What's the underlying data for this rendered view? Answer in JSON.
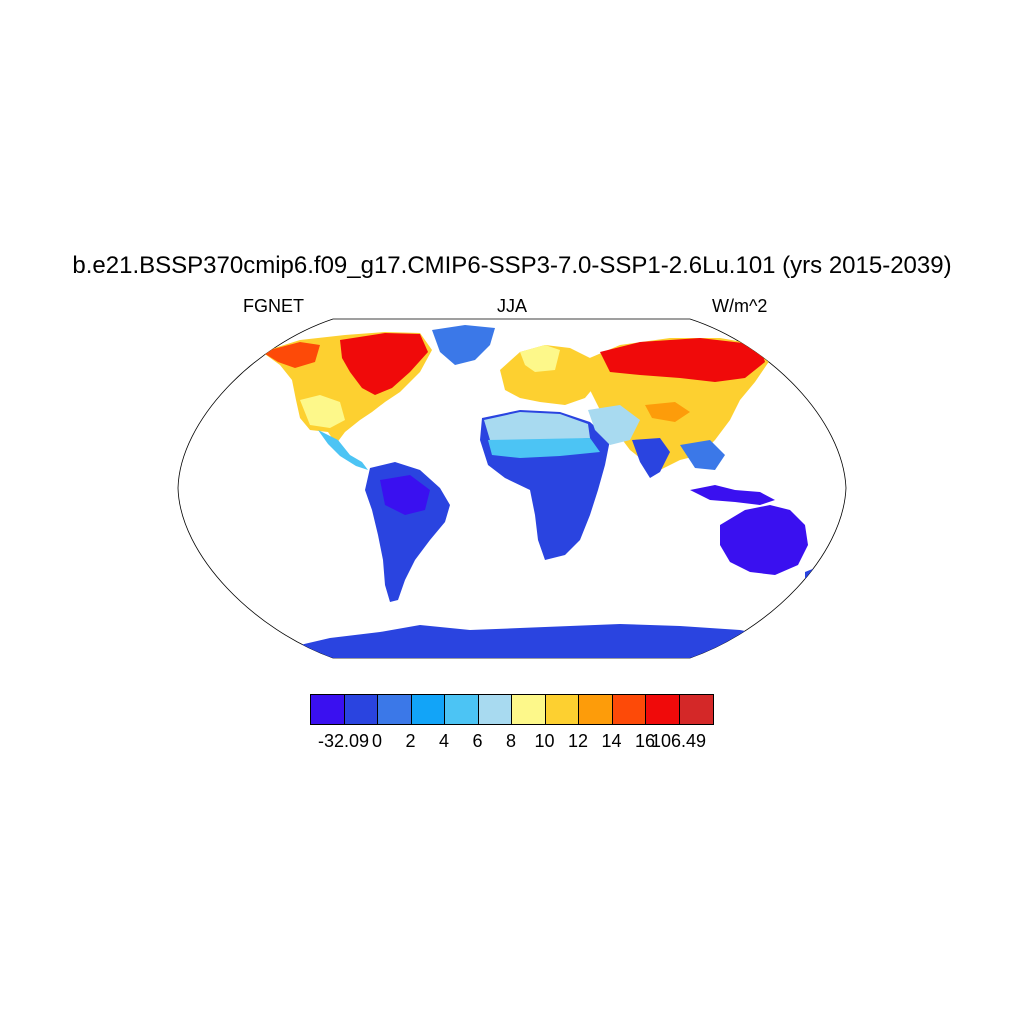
{
  "title": "b.e21.BSSP370cmip6.f09_g17.CMIP6-SSP3-7.0-SSP1-2.6Lu.101 (yrs 2015-2039)",
  "left_label": "FGNET",
  "center_label": "JJA",
  "right_label": "W/m^2",
  "colorbar": {
    "colors": [
      "#3a10f0",
      "#2a44e0",
      "#3b78e8",
      "#12a4f8",
      "#4cc4f4",
      "#a8daf0",
      "#fdf88a",
      "#fdd030",
      "#fd9c0a",
      "#fd4a08",
      "#f00a0a",
      "#d42828"
    ],
    "labels": [
      "-32.09",
      "0",
      "2",
      "4",
      "6",
      "8",
      "10",
      "12",
      "14",
      "16",
      "106.49"
    ]
  },
  "map": {
    "projection": "Robinson",
    "field": "FGNET",
    "season": "JJA"
  }
}
